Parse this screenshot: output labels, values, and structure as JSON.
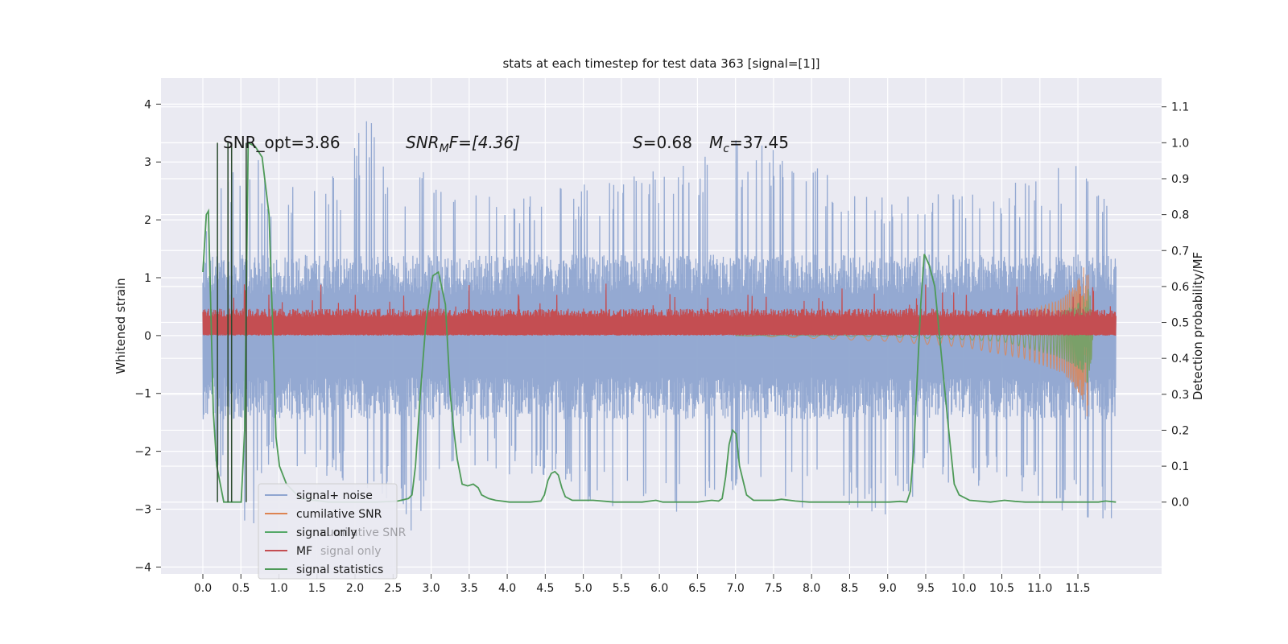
{
  "chart_data": {
    "type": "line",
    "title": "stats at each timestep for test data 363 [signal=[1]]",
    "xlabel": "",
    "ylabel": "Whitened strain",
    "ylabel_right": "Detection probability/MF",
    "xlim": [
      -0.55,
      12.6
    ],
    "ylim": [
      -4.12,
      4.45
    ],
    "ylim_right": [
      -0.2,
      1.18
    ],
    "x_ticks": [
      "0.0",
      "0.5",
      "1.0",
      "1.5",
      "2.0",
      "2.5",
      "3.0",
      "3.5",
      "4.0",
      "4.5",
      "5.0",
      "5.5",
      "6.0",
      "6.5",
      "7.0",
      "7.5",
      "8.0",
      "8.5",
      "9.0",
      "9.5",
      "10.0",
      "10.5",
      "11.0",
      "11.5"
    ],
    "y_ticks": [
      "4",
      "3",
      "2",
      "1",
      "0",
      "−1",
      "−2",
      "−3",
      "−4"
    ],
    "y_ticks_right": [
      "1.1",
      "1.0",
      "0.9",
      "0.8",
      "0.7",
      "0.6",
      "0.5",
      "0.4",
      "0.3",
      "0.2",
      "0.1",
      "0.0"
    ],
    "grid": true,
    "legend_position": "lower-left",
    "annotations": {
      "snr_opt": "SNR_opt=3.86",
      "snr_mf_main": "SNR",
      "snr_mf_sub": "M",
      "snr_mf_rest": "F=[4.36]",
      "s_label": "S",
      "s_value": "=0.68",
      "mc_main": "M",
      "mc_sub": "c",
      "mc_value": "=37.45"
    },
    "legend_overlay_labels": [
      "cumilative SNR",
      "signal only"
    ],
    "series": [
      {
        "name": "signal+ noise",
        "axis": "left",
        "color": "#8fa5d0",
        "x_range": [
          0.0,
          12.0
        ],
        "upper_envelope": [
          [
            0.0,
            1.8
          ],
          [
            0.05,
            2.1
          ],
          [
            0.2,
            3.2
          ],
          [
            0.4,
            2.9
          ],
          [
            0.65,
            3.3
          ],
          [
            0.9,
            2.5
          ],
          [
            1.35,
            2.85
          ],
          [
            1.8,
            2.8
          ],
          [
            2.2,
            4.1
          ],
          [
            2.5,
            2.7
          ],
          [
            2.75,
            2.95
          ],
          [
            3.0,
            2.8
          ],
          [
            3.5,
            2.6
          ],
          [
            4.1,
            2.5
          ],
          [
            5.0,
            2.7
          ],
          [
            5.9,
            2.9
          ],
          [
            6.5,
            3.1
          ],
          [
            6.7,
            3.5
          ],
          [
            7.5,
            3.3
          ],
          [
            8.0,
            3.25
          ],
          [
            8.5,
            2.4
          ],
          [
            9.0,
            2.6
          ],
          [
            9.5,
            2.65
          ],
          [
            10.0,
            2.7
          ],
          [
            10.5,
            2.75
          ],
          [
            11.0,
            2.7
          ],
          [
            11.45,
            3.2
          ],
          [
            11.7,
            2.8
          ],
          [
            12.0,
            2.6
          ]
        ],
        "lower_envelope": [
          [
            0.0,
            -1.3
          ],
          [
            0.05,
            -2.4
          ],
          [
            0.3,
            -2.5
          ],
          [
            0.6,
            -3.7
          ],
          [
            0.8,
            -2.4
          ],
          [
            1.5,
            -2.5
          ],
          [
            2.5,
            -2.9
          ],
          [
            2.7,
            -3.5
          ],
          [
            3.5,
            -2.3
          ],
          [
            4.5,
            -2.5
          ],
          [
            5.0,
            -2.9
          ],
          [
            5.2,
            -3.1
          ],
          [
            6.0,
            -2.8
          ],
          [
            6.3,
            -3.2
          ],
          [
            7.0,
            -2.7
          ],
          [
            7.6,
            -3.2
          ],
          [
            8.0,
            -2.9
          ],
          [
            9.0,
            -3.2
          ],
          [
            9.5,
            -2.6
          ],
          [
            10.0,
            -2.6
          ],
          [
            11.0,
            -2.9
          ],
          [
            11.6,
            -3.15
          ],
          [
            11.95,
            -3.2
          ]
        ],
        "band": [
          -1.45,
          1.4
        ]
      },
      {
        "name": "cumilative SNR",
        "axis": "left",
        "color": "#dd8452",
        "x_range": [
          7.0,
          11.7
        ],
        "amplitude": [
          [
            7.0,
            0.0
          ],
          [
            8.0,
            0.05
          ],
          [
            9.0,
            0.1
          ],
          [
            10.0,
            0.2
          ],
          [
            10.8,
            0.4
          ],
          [
            11.3,
            0.65
          ],
          [
            11.55,
            1.05
          ],
          [
            11.62,
            1.4
          ],
          [
            11.7,
            0.0
          ]
        ]
      },
      {
        "name": "signal only",
        "axis": "left",
        "color": "#55a868",
        "x_range": [
          7.0,
          11.7
        ],
        "amplitude": [
          [
            7.0,
            0.0
          ],
          [
            9.0,
            0.02
          ],
          [
            10.5,
            0.1
          ],
          [
            11.2,
            0.35
          ],
          [
            11.55,
            0.6
          ],
          [
            11.65,
            0.9
          ],
          [
            11.7,
            0.0
          ]
        ]
      },
      {
        "name": "MF",
        "axis": "left",
        "color": "#c44e52",
        "x_range": [
          0.0,
          12.0
        ],
        "base": 0.25,
        "spread": 0.12,
        "peak_max": 1.0
      },
      {
        "name": "signal statistics",
        "axis": "right",
        "color": "#4e9a58",
        "points": [
          [
            0.0,
            0.64
          ],
          [
            0.05,
            0.8
          ],
          [
            0.08,
            0.81
          ],
          [
            0.15,
            0.25
          ],
          [
            0.2,
            0.1
          ],
          [
            0.3,
            0.0
          ],
          [
            0.45,
            0.0
          ],
          [
            0.55,
            0.0
          ],
          [
            0.6,
            0.2
          ],
          [
            0.65,
            1.0
          ],
          [
            0.75,
            0.99
          ],
          [
            0.85,
            0.96
          ],
          [
            0.95,
            0.8
          ],
          [
            1.0,
            0.5
          ],
          [
            1.05,
            0.18
          ],
          [
            1.1,
            0.1
          ],
          [
            1.2,
            0.05
          ],
          [
            1.4,
            0.01
          ],
          [
            1.8,
            0.0
          ],
          [
            2.5,
            0.0
          ],
          [
            2.8,
            0.003
          ],
          [
            2.95,
            0.01
          ],
          [
            3.0,
            0.02
          ],
          [
            3.05,
            0.1
          ],
          [
            3.12,
            0.3
          ],
          [
            3.2,
            0.5
          ],
          [
            3.3,
            0.63
          ],
          [
            3.38,
            0.64
          ],
          [
            3.48,
            0.55
          ],
          [
            3.55,
            0.3
          ],
          [
            3.6,
            0.2
          ],
          [
            3.65,
            0.12
          ],
          [
            3.72,
            0.05
          ],
          [
            3.8,
            0.045
          ],
          [
            3.88,
            0.05
          ],
          [
            3.95,
            0.04
          ],
          [
            4.0,
            0.02
          ],
          [
            4.1,
            0.01
          ],
          [
            4.2,
            0.005
          ],
          [
            4.4,
            0.0
          ],
          [
            4.7,
            0.0
          ],
          [
            4.85,
            0.003
          ],
          [
            4.9,
            0.02
          ],
          [
            4.95,
            0.06
          ],
          [
            5.0,
            0.08
          ],
          [
            5.05,
            0.085
          ],
          [
            5.1,
            0.075
          ],
          [
            5.15,
            0.04
          ],
          [
            5.2,
            0.015
          ],
          [
            5.3,
            0.005
          ],
          [
            5.6,
            0.005
          ],
          [
            5.9,
            0.0
          ],
          [
            6.3,
            0.0
          ],
          [
            6.5,
            0.005
          ],
          [
            6.6,
            0.0
          ],
          [
            7.1,
            0.0
          ],
          [
            7.3,
            0.005
          ],
          [
            7.4,
            0.003
          ],
          [
            7.45,
            0.01
          ],
          [
            7.5,
            0.07
          ],
          [
            7.55,
            0.16
          ],
          [
            7.6,
            0.2
          ],
          [
            7.65,
            0.19
          ],
          [
            7.7,
            0.1
          ],
          [
            7.8,
            0.02
          ],
          [
            7.9,
            0.005
          ],
          [
            8.2,
            0.005
          ],
          [
            8.3,
            0.008
          ],
          [
            8.5,
            0.003
          ],
          [
            8.7,
            0.0
          ],
          [
            9.5,
            0.0
          ],
          [
            9.85,
            0.0
          ],
          [
            10.0,
            0.002
          ],
          [
            10.1,
            0.0
          ],
          [
            10.15,
            0.03
          ],
          [
            10.2,
            0.15
          ],
          [
            10.25,
            0.35
          ],
          [
            10.3,
            0.55
          ],
          [
            10.35,
            0.69
          ],
          [
            10.42,
            0.66
          ],
          [
            10.5,
            0.6
          ],
          [
            10.6,
            0.4
          ],
          [
            10.7,
            0.2
          ],
          [
            10.78,
            0.05
          ],
          [
            10.85,
            0.02
          ],
          [
            11.0,
            0.005
          ],
          [
            11.3,
            0.0
          ],
          [
            11.5,
            0.005
          ],
          [
            11.65,
            0.002
          ],
          [
            11.8,
            0.0
          ],
          [
            12.5,
            0.0
          ],
          [
            12.85,
            0.0
          ],
          [
            12.95,
            0.003
          ],
          [
            13.1,
            0.0
          ]
        ]
      }
    ],
    "mf_peak_positions": [
      0.55,
      1.55,
      2.0,
      3.1,
      3.5,
      4.15,
      5.3,
      6.2,
      7.4,
      8.4,
      9.5,
      10.7,
      11.7
    ],
    "vertical_lines": [
      0.32,
      0.55,
      0.63,
      0.95
    ]
  }
}
